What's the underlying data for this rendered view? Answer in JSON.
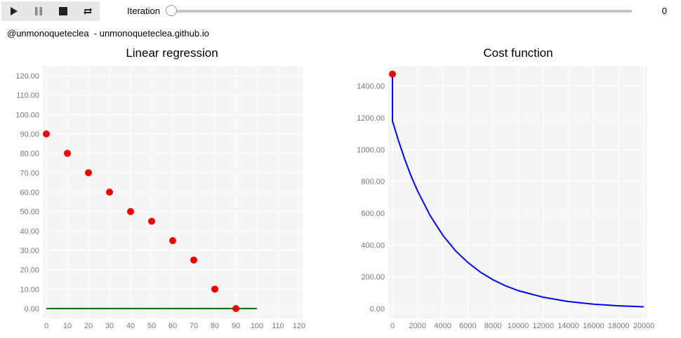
{
  "toolbar": {
    "buttons": [
      {
        "name": "play-button",
        "icon": "play-icon"
      },
      {
        "name": "pause-button",
        "icon": "pause-icon"
      },
      {
        "name": "stop-button",
        "icon": "stop-icon"
      },
      {
        "name": "repeat-button",
        "icon": "repeat-icon"
      }
    ]
  },
  "iteration": {
    "label": "Iteration",
    "value": "0",
    "slider_fraction": 0
  },
  "credit": "@unmonoqueteclea  - unmonoqueteclea.github.io",
  "colors": {
    "points": "#ee0000",
    "regression_line": "#008000",
    "cost_line": "#0000ee",
    "plot_bg": "#f5f5f5",
    "grid": "#ffffff"
  },
  "chart_data": [
    {
      "type": "scatter",
      "title": "Linear regression",
      "x": [
        0,
        10,
        20,
        30,
        40,
        50,
        60,
        70,
        80,
        90
      ],
      "y": [
        90,
        80,
        70,
        60,
        50,
        45,
        35,
        25,
        10,
        0
      ],
      "regression_line": {
        "x": [
          0,
          100
        ],
        "y": [
          0,
          0
        ]
      },
      "xlim": [
        0,
        120
      ],
      "ylim": [
        0,
        120
      ],
      "xticks": [
        "0",
        "10",
        "20",
        "30",
        "40",
        "50",
        "60",
        "70",
        "80",
        "90",
        "100",
        "110",
        "120"
      ],
      "yticks": [
        "0.00",
        "10.00",
        "20.00",
        "30.00",
        "40.00",
        "50.00",
        "60.00",
        "70.00",
        "80.00",
        "90.00",
        "100.00",
        "110.00",
        "120.00"
      ],
      "grid": true
    },
    {
      "type": "line",
      "title": "Cost function",
      "x": [
        0,
        1,
        500,
        1000,
        1500,
        2000,
        3000,
        4000,
        5000,
        6000,
        7000,
        8000,
        9000,
        10000,
        12000,
        14000,
        16000,
        18000,
        20000
      ],
      "y": [
        1475,
        1180,
        1050,
        935,
        830,
        740,
        585,
        462,
        365,
        290,
        229,
        181,
        143,
        113,
        71,
        44,
        28,
        17,
        11
      ],
      "current_point": {
        "x": 0,
        "y": 1475
      },
      "xlim": [
        0,
        20000
      ],
      "ylim": [
        0,
        1500
      ],
      "xticks": [
        "0",
        "2000",
        "4000",
        "6000",
        "8000",
        "10000",
        "12000",
        "14000",
        "16000",
        "18000",
        "20000"
      ],
      "yticks": [
        "0.00",
        "200.00",
        "400.00",
        "600.00",
        "800.00",
        "1000.00",
        "1200.00",
        "1400.00"
      ],
      "grid": true
    }
  ]
}
